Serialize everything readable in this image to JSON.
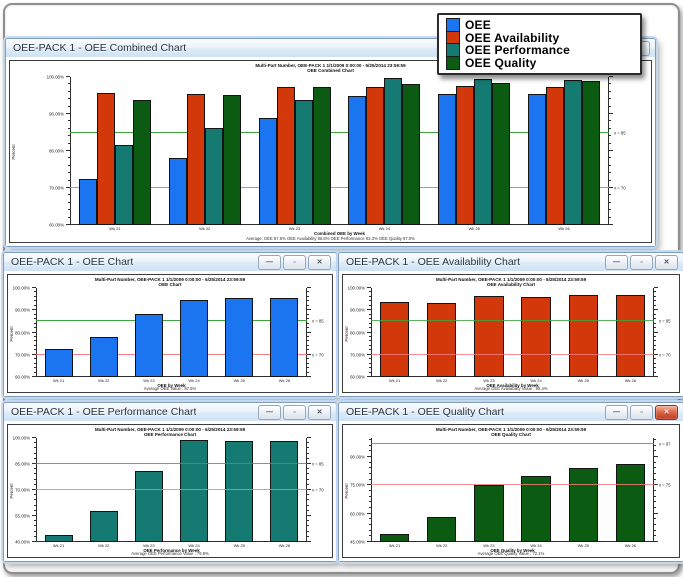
{
  "window_controls": {
    "minimize": "—",
    "maximize": "▫",
    "close": "✕"
  },
  "legend": {
    "items": [
      {
        "label": "OEE",
        "color": "#1b74f0"
      },
      {
        "label": "OEE Availability",
        "color": "#d2380a"
      },
      {
        "label": "OEE Performance",
        "color": "#157a72"
      },
      {
        "label": "OEE Quality",
        "color": "#0b5c12"
      }
    ]
  },
  "windows": [
    {
      "title": "OEE-PACK 1 - OEE Combined Chart",
      "active": false
    },
    {
      "title": "OEE-PACK 1 - OEE Chart",
      "active": false
    },
    {
      "title": "OEE-PACK 1 - OEE Availability Chart",
      "active": false
    },
    {
      "title": "OEE-PACK 1 - OEE Performance Chart",
      "active": false
    },
    {
      "title": "OEE-PACK 1 - OEE Quality Chart",
      "active": true
    }
  ],
  "chart_data": [
    {
      "type": "bar",
      "title": "Multi-Part Number, OEE-PACK 1   1/1/2009 0:00:00 - 6/25/2014 23:59:59",
      "subtitle": "OEE Combined Chart",
      "ylabel": "Percent",
      "xlabel": "Combined OEE by Week",
      "footer": "Average:  OEE 87.6%    OEE Availability 96.8%    OEE Performance 93.3%    OEE Quality 97.0%",
      "ylim": [
        60,
        100
      ],
      "yticks": [
        {
          "value": 100,
          "label": "100.00%"
        },
        {
          "value": 90,
          "label": "90.00%"
        },
        {
          "value": 80,
          "label": "80.00%"
        },
        {
          "value": 70,
          "label": "70.00%"
        },
        {
          "value": 60,
          "label": "60.00%"
        }
      ],
      "goal_line": {
        "value": 85,
        "label": "x = 85",
        "color": "#3da53d"
      },
      "alarm_line": {
        "value": 70,
        "label": "x = 70",
        "color": "#f27d7d"
      },
      "lines_on_top": false,
      "categories": [
        "Wk 21",
        "Wk 22",
        "Wk 23",
        "Wk 24",
        "Wk 25",
        "Wk 26"
      ],
      "series": [
        {
          "name": "OEE",
          "color": "#1b74f0",
          "values": [
            72.5,
            78,
            89,
            95,
            95.5,
            95.3
          ]
        },
        {
          "name": "OEE Availability",
          "color": "#d2380a",
          "values": [
            95.8,
            95.5,
            97.3,
            97.2,
            97.6,
            97.4
          ]
        },
        {
          "name": "OEE Performance",
          "color": "#157a72",
          "values": [
            81.5,
            86.3,
            93.7,
            99.8,
            99.4,
            99.1
          ]
        },
        {
          "name": "OEE Quality",
          "color": "#0b5c12",
          "values": [
            93.9,
            95.1,
            97.3,
            98.2,
            98.5,
            98.8
          ]
        }
      ]
    },
    {
      "type": "bar",
      "title": "Multi-Part Number, OEE-PACK 1   1/1/2009 0:00:00 - 6/25/2014 23:59:59",
      "subtitle": "OEE Chart",
      "ylabel": "Percent",
      "xlabel": "OEE by Week",
      "footer": "Average OEE Value : 87.5%",
      "ylim": [
        60,
        100
      ],
      "yticks": [
        {
          "value": 100,
          "label": "100.00%"
        },
        {
          "value": 90,
          "label": "90.00%"
        },
        {
          "value": 80,
          "label": "80.00%"
        },
        {
          "value": 70,
          "label": "70.00%"
        },
        {
          "value": 60,
          "label": "60.00%"
        }
      ],
      "goal_line": {
        "value": 85,
        "label": "x = 85",
        "color": "#3da53d"
      },
      "alarm_line": {
        "value": 70,
        "label": "x = 70",
        "color": "#f27d7d"
      },
      "lines_on_top": false,
      "categories": [
        "Wk 21",
        "Wk 22",
        "Wk 23",
        "Wk 24",
        "Wk 25",
        "Wk 26"
      ],
      "series": [
        {
          "name": "OEE",
          "color": "#1b74f0",
          "values": [
            72.5,
            78,
            88.5,
            94.7,
            95.6,
            95.5
          ]
        }
      ]
    },
    {
      "type": "bar",
      "title": "Multi-Part Number, OEE-PACK 1   1/1/2009 0:00:00 - 6/25/2014 23:59:59",
      "subtitle": "OEE Availability Chart",
      "ylabel": "Percent",
      "xlabel": "OEE Availability by Week",
      "footer": "Average OEE Availability Value : 95.4%",
      "ylim": [
        60,
        100
      ],
      "yticks": [
        {
          "value": 100,
          "label": "100.00%"
        },
        {
          "value": 90,
          "label": "90.00%"
        },
        {
          "value": 80,
          "label": "80.00%"
        },
        {
          "value": 70,
          "label": "70.00%"
        },
        {
          "value": 60,
          "label": "60.00%"
        }
      ],
      "goal_line": {
        "value": 85,
        "label": "x = 85",
        "color": "#3da53d"
      },
      "alarm_line": {
        "value": 70,
        "label": "x = 70",
        "color": "#f27d7d"
      },
      "lines_on_top": true,
      "categories": [
        "Wk 21",
        "Wk 22",
        "Wk 23",
        "Wk 24",
        "Wk 25",
        "Wk 26"
      ],
      "series": [
        {
          "name": "OEE Availability",
          "color": "#d2380a",
          "values": [
            93.5,
            93.2,
            96.2,
            95.8,
            97.0,
            96.7
          ]
        }
      ]
    },
    {
      "type": "bar",
      "title": "Multi-Part Number, OEE-PACK 1   1/1/2009 0:00:00 - 6/25/2014 23:59:59",
      "subtitle": "OEE Performance Chart",
      "ylabel": "Percent",
      "xlabel": "OEE Performance by Week",
      "footer": "Average OEE Performance Value : 79.8%",
      "ylim": [
        40,
        100
      ],
      "yticks": [
        {
          "value": 100,
          "label": "100.00%"
        },
        {
          "value": 85,
          "label": "85.00%"
        },
        {
          "value": 70,
          "label": "70.00%"
        },
        {
          "value": 55,
          "label": "55.00%"
        },
        {
          "value": 40,
          "label": "40.00%"
        }
      ],
      "goal_line": {
        "value": 85,
        "label": "x = 85",
        "color": "#3da53d"
      },
      "alarm_line": {
        "value": 70,
        "label": "x = 70",
        "color": "#f27d7d"
      },
      "lines_on_top": true,
      "categories": [
        "Wk 21",
        "Wk 22",
        "Wk 23",
        "Wk 24",
        "Wk 25",
        "Wk 26"
      ],
      "series": [
        {
          "name": "OEE Performance",
          "color": "#157a72",
          "values": [
            44,
            58,
            81,
            99,
            98.5,
            98
          ]
        }
      ]
    },
    {
      "type": "bar",
      "title": "Multi-Part Number, OEE-PACK 1   1/1/2009 0:00:00 - 6/25/2014 23:59:59",
      "subtitle": "OEE Quality Chart",
      "ylabel": "Percent",
      "xlabel": "OEE Quality by Week",
      "footer": "Average OEE Quality Value : 72.1%",
      "ylim": [
        45,
        100
      ],
      "yticks": [
        {
          "value": 90,
          "label": "90.00%"
        },
        {
          "value": 75,
          "label": "75.00%"
        },
        {
          "value": 60,
          "label": "60.00%"
        },
        {
          "value": 45,
          "label": "45.00%"
        }
      ],
      "goal_line": {
        "value": 97,
        "label": "x = 97",
        "color": "#3da53d"
      },
      "alarm_line": {
        "value": 75,
        "label": "x = 75",
        "color": "#f27d7d"
      },
      "lines_on_top": true,
      "categories": [
        "Wk 21",
        "Wk 22",
        "Wk 23",
        "Wk 24",
        "Wk 25",
        "Wk 26"
      ],
      "series": [
        {
          "name": "OEE Quality",
          "color": "#0b5c12",
          "values": [
            49,
            58,
            75,
            80,
            84,
            86.5
          ]
        }
      ]
    }
  ]
}
